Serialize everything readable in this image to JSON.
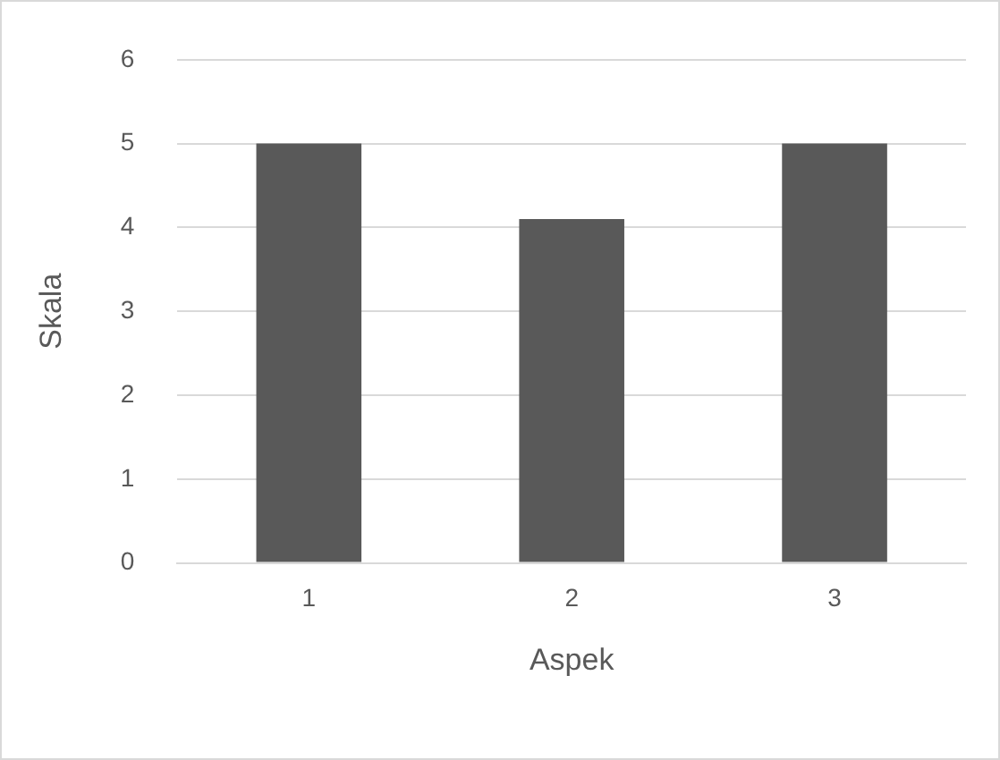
{
  "chart_data": {
    "type": "bar",
    "xlabel": "Aspek",
    "ylabel": "Skala",
    "categories": [
      "1",
      "2",
      "3"
    ],
    "values": [
      5,
      4.1,
      5
    ],
    "color": "#595959",
    "ylim": [
      0,
      6
    ],
    "yticks": [
      0,
      1,
      2,
      3,
      4,
      5,
      6
    ],
    "grid": "y"
  }
}
